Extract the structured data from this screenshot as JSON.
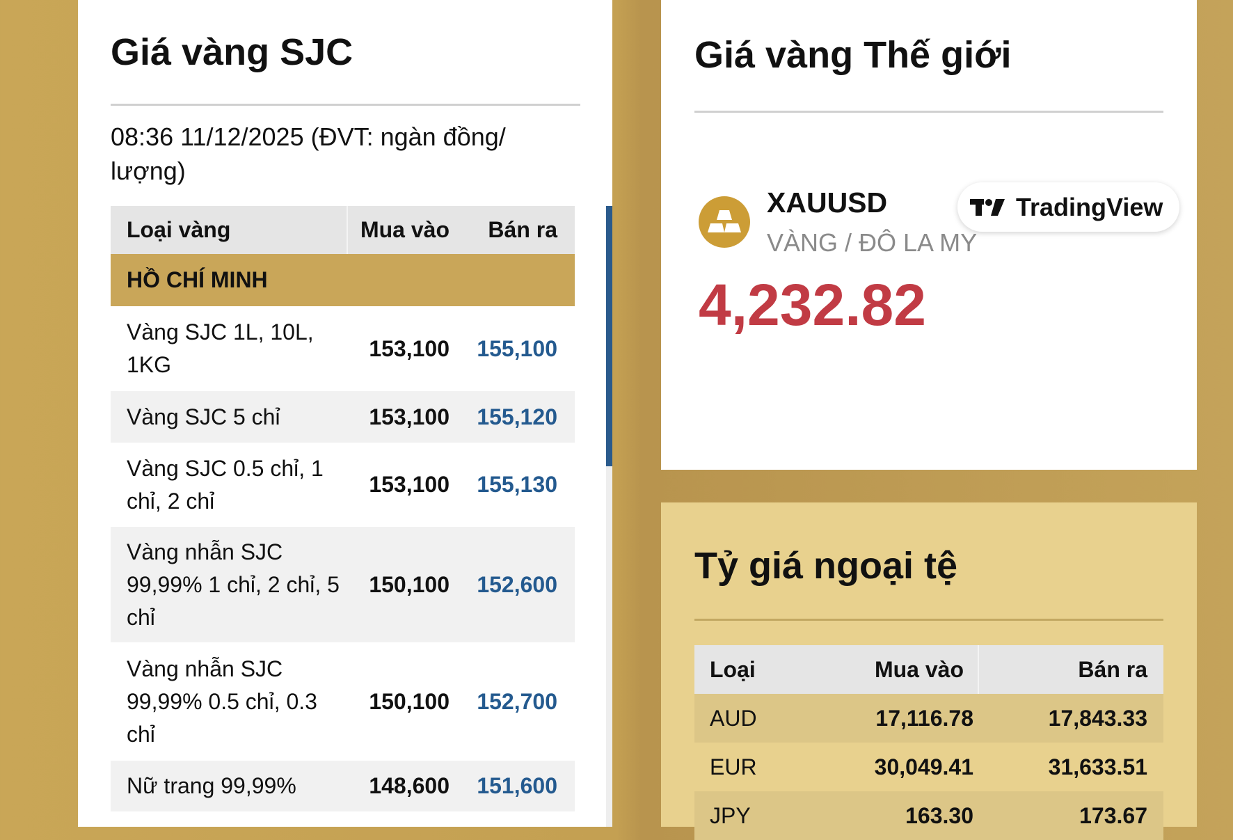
{
  "sjc": {
    "title": "Giá vàng SJC",
    "date": "08:36 11/12/2025 (ĐVT: ngàn đồng/ lượng)",
    "headers": [
      "Loại vàng",
      "Mua vào",
      "Bán ra"
    ],
    "region": "HỒ CHÍ MINH",
    "rows": [
      {
        "name": "Vàng SJC 1L, 10L, 1KG",
        "buy": "153,100",
        "sell": "155,100"
      },
      {
        "name": "Vàng SJC 5 chỉ",
        "buy": "153,100",
        "sell": "155,120"
      },
      {
        "name": "Vàng SJC 0.5 chỉ, 1 chỉ, 2 chỉ",
        "buy": "153,100",
        "sell": "155,130"
      },
      {
        "name": "Vàng nhẫn SJC 99,99% 1 chỉ, 2 chỉ, 5 chỉ",
        "buy": "150,100",
        "sell": "152,600"
      },
      {
        "name": "Vàng nhẫn SJC 99,99% 0.5 chỉ, 0.3 chỉ",
        "buy": "150,100",
        "sell": "152,700"
      },
      {
        "name": "Nữ trang 99,99%",
        "buy": "148,600",
        "sell": "151,600"
      }
    ]
  },
  "world": {
    "title": "Giá vàng Thế giới",
    "symbol": "XAUUSD",
    "description": "VÀNG / ĐÔ LA MY",
    "price": "4,232.82",
    "badge": "TradingView",
    "icon": "gold-bars-icon",
    "price_color": "#c13b44"
  },
  "fx": {
    "title": "Tỷ giá ngoại tệ",
    "headers": [
      "Loại",
      "Mua vào",
      "Bán ra"
    ],
    "rows": [
      {
        "cur": "AUD",
        "buy": "17,116.78",
        "sell": "17,843.33"
      },
      {
        "cur": "EUR",
        "buy": "30,049.41",
        "sell": "31,633.51"
      },
      {
        "cur": "JPY",
        "buy": "163.30",
        "sell": "173.67"
      }
    ]
  }
}
